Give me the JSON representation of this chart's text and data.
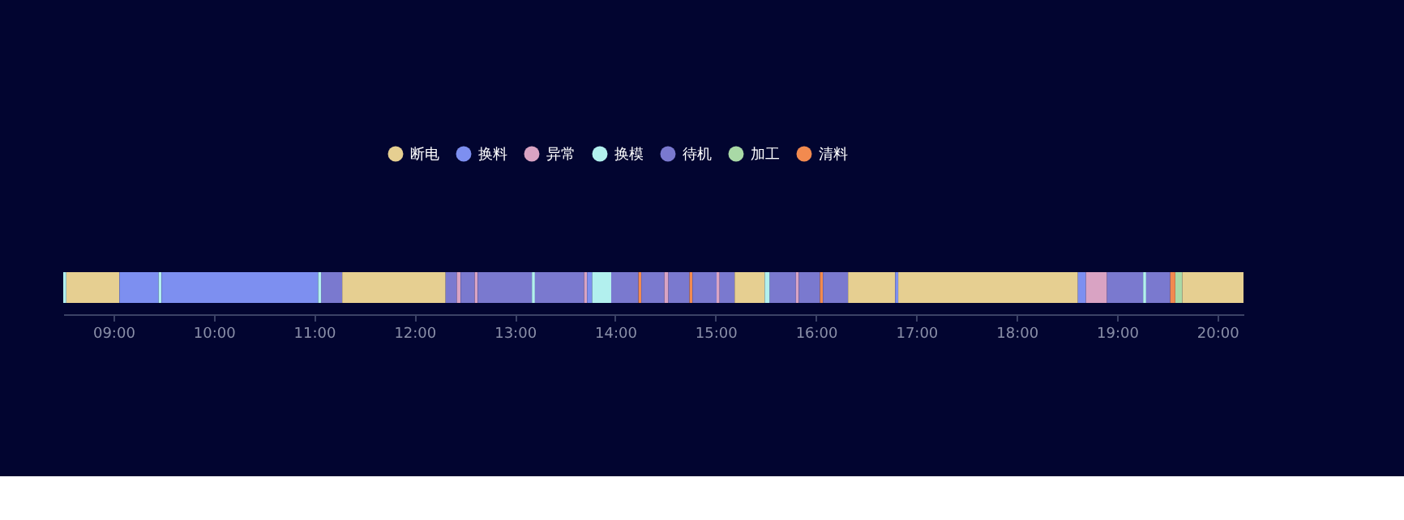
{
  "chart_data": {
    "type": "bar",
    "orientation": "horizontal",
    "legend": "top",
    "marker": "circle",
    "grid": false,
    "categories": [
      null
    ],
    "xlim": [
      8.5,
      20.26
    ],
    "xticks": [
      {
        "value": 9,
        "label": "09:00"
      },
      {
        "value": 10,
        "label": "10:00"
      },
      {
        "value": 11,
        "label": "11:00"
      },
      {
        "value": 12,
        "label": "12:00"
      },
      {
        "value": 13,
        "label": "13:00"
      },
      {
        "value": 14,
        "label": "14:00"
      },
      {
        "value": 15,
        "label": "15:00"
      },
      {
        "value": 16,
        "label": "16:00"
      },
      {
        "value": 17,
        "label": "17:00"
      },
      {
        "value": 18,
        "label": "18:00"
      },
      {
        "value": 19,
        "label": "19:00"
      },
      {
        "value": 20,
        "label": "20:00"
      }
    ],
    "series": [
      {
        "name": "断电",
        "color": "#e6cf91",
        "base": [
          8.53
        ],
        "values": [
          0.53
        ]
      },
      {
        "name": "换料",
        "color": "#7d8ff0",
        "base": [
          9.06
        ],
        "values": [
          0.39
        ]
      },
      {
        "name": "异常",
        "color": "#d9a3c3",
        "base": [
          12.42
        ],
        "values": [
          0.04
        ]
      },
      {
        "name": "换模",
        "color": "#b2f0ee",
        "base": [
          8.5
        ],
        "values": [
          0.03
        ]
      },
      {
        "name": "待机",
        "color": "#7a79cf",
        "base": [
          11.07
        ],
        "values": [
          0.21
        ]
      },
      {
        "name": "加工",
        "color": "#a9d9a6",
        "base": [
          19.58
        ],
        "values": [
          0.07
        ]
      },
      {
        "name": "清料",
        "color": "#f28a4f",
        "base": [
          14.23
        ],
        "values": [
          0.03
        ]
      },
      {
        "color": "#b2f0ee",
        "base": [
          9.45
        ],
        "values": [
          0.03
        ]
      },
      {
        "color": "#7d8ff0",
        "base": [
          9.48
        ],
        "values": [
          1.56
        ]
      },
      {
        "color": "#b2f0ee",
        "base": [
          11.04
        ],
        "values": [
          0.03
        ]
      },
      {
        "color": "#e6cf91",
        "base": [
          11.28
        ],
        "values": [
          1.03
        ]
      },
      {
        "color": "#7a79cf",
        "base": [
          12.31
        ],
        "values": [
          0.11
        ]
      },
      {
        "color": "#7a79cf",
        "base": [
          12.46
        ],
        "values": [
          0.14
        ]
      },
      {
        "color": "#d9a3c3",
        "base": [
          12.6
        ],
        "values": [
          0.03
        ]
      },
      {
        "color": "#7a79cf",
        "base": [
          12.63
        ],
        "values": [
          0.54
        ]
      },
      {
        "color": "#b2f0ee",
        "base": [
          13.17
        ],
        "values": [
          0.03
        ]
      },
      {
        "color": "#7a79cf",
        "base": [
          13.2
        ],
        "values": [
          0.49
        ]
      },
      {
        "color": "#d9a3c3",
        "base": [
          13.69
        ],
        "values": [
          0.03
        ]
      },
      {
        "color": "#7d8ff0",
        "base": [
          13.72
        ],
        "values": [
          0.05
        ]
      },
      {
        "color": "#b2f0ee",
        "base": [
          13.77
        ],
        "values": [
          0.19
        ]
      },
      {
        "color": "#7a79cf",
        "base": [
          13.96
        ],
        "values": [
          0.27
        ]
      },
      {
        "color": "#7a79cf",
        "base": [
          14.26
        ],
        "values": [
          0.23
        ]
      },
      {
        "color": "#d9a3c3",
        "base": [
          14.49
        ],
        "values": [
          0.04
        ]
      },
      {
        "color": "#7a79cf",
        "base": [
          14.53
        ],
        "values": [
          0.21
        ]
      },
      {
        "color": "#f28a4f",
        "base": [
          14.74
        ],
        "values": [
          0.03
        ]
      },
      {
        "color": "#7a79cf",
        "base": [
          14.77
        ],
        "values": [
          0.24
        ]
      },
      {
        "color": "#d9a3c3",
        "base": [
          15.01
        ],
        "values": [
          0.03
        ]
      },
      {
        "color": "#7a79cf",
        "base": [
          15.04
        ],
        "values": [
          0.15
        ]
      },
      {
        "color": "#e6cf91",
        "base": [
          15.19
        ],
        "values": [
          0.3
        ]
      },
      {
        "color": "#b2f0ee",
        "base": [
          15.49
        ],
        "values": [
          0.05
        ]
      },
      {
        "color": "#7a79cf",
        "base": [
          15.54
        ],
        "values": [
          0.26
        ]
      },
      {
        "color": "#d9a3c3",
        "base": [
          15.8
        ],
        "values": [
          0.03
        ]
      },
      {
        "color": "#7a79cf",
        "base": [
          15.83
        ],
        "values": [
          0.21
        ]
      },
      {
        "color": "#f28a4f",
        "base": [
          16.04
        ],
        "values": [
          0.03
        ]
      },
      {
        "color": "#7a79cf",
        "base": [
          16.07
        ],
        "values": [
          0.25
        ]
      },
      {
        "color": "#e6cf91",
        "base": [
          16.32
        ],
        "values": [
          0.47
        ]
      },
      {
        "color": "#7d8ff0",
        "base": [
          16.79
        ],
        "values": [
          0.03
        ]
      },
      {
        "color": "#e6cf91",
        "base": [
          16.82
        ],
        "values": [
          1.79
        ]
      },
      {
        "color": "#7d8ff0",
        "base": [
          18.61
        ],
        "values": [
          0.08
        ]
      },
      {
        "color": "#d9a3c3",
        "base": [
          18.69
        ],
        "values": [
          0.21
        ]
      },
      {
        "color": "#7a79cf",
        "base": [
          18.9
        ],
        "values": [
          0.36
        ]
      },
      {
        "color": "#b2f0ee",
        "base": [
          19.26
        ],
        "values": [
          0.03
        ]
      },
      {
        "color": "#7a79cf",
        "base": [
          19.29
        ],
        "values": [
          0.24
        ]
      },
      {
        "color": "#f28a4f",
        "base": [
          19.53
        ],
        "values": [
          0.05
        ]
      },
      {
        "color": "#e6cf91",
        "base": [
          19.65
        ],
        "values": [
          0.61
        ]
      }
    ]
  }
}
